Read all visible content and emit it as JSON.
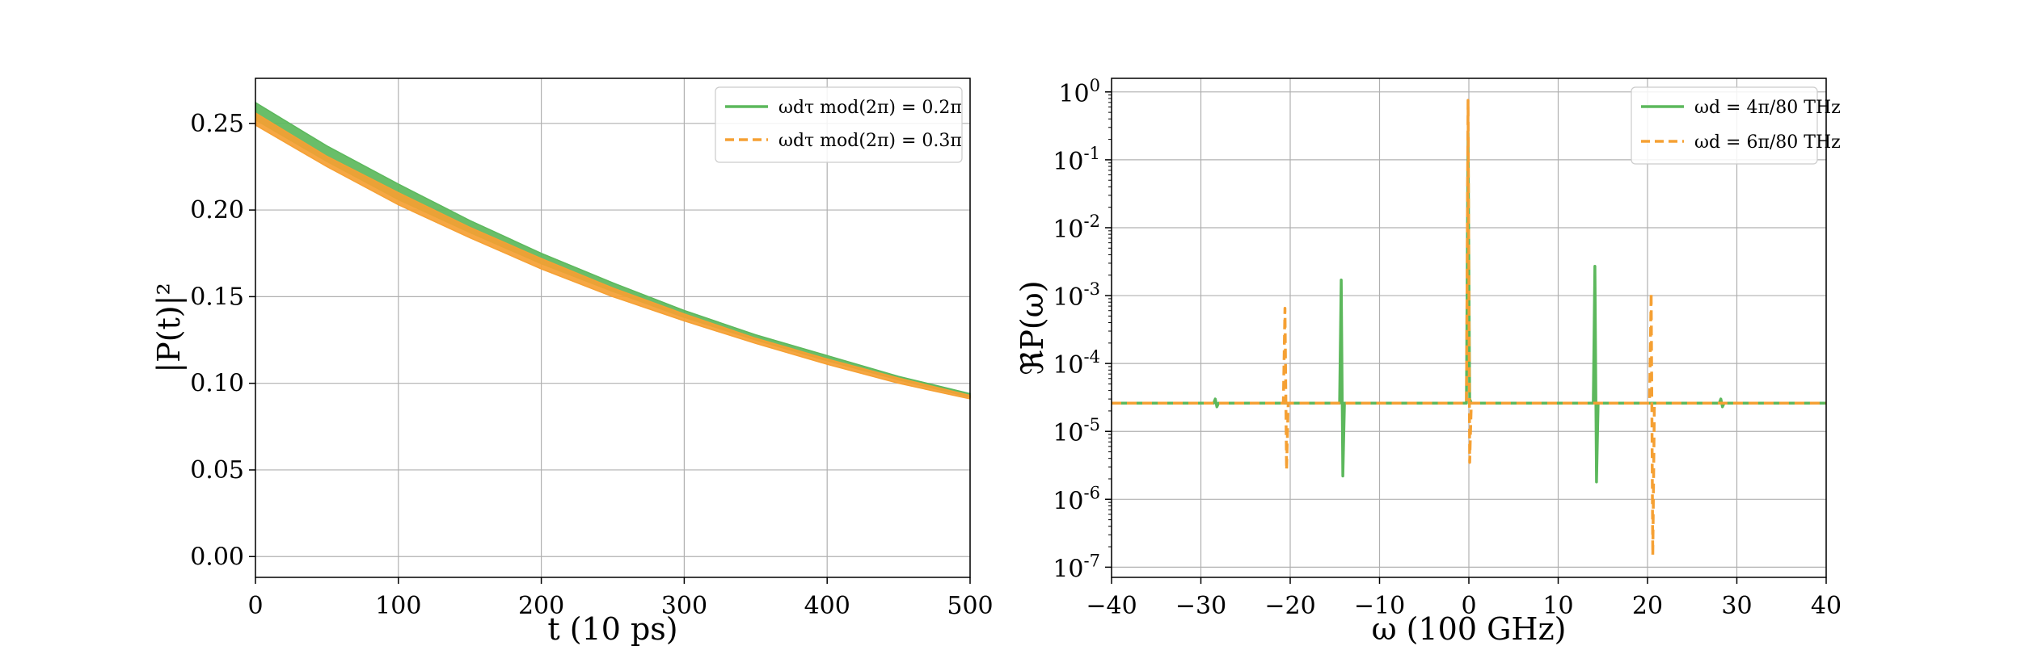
{
  "chart_data": [
    {
      "type": "line",
      "xlabel": "t (10 ps)",
      "ylabel": "|P(t)|²",
      "xlim": [
        0,
        500
      ],
      "ylim": [
        -0.012,
        0.276
      ],
      "x_ticks": [
        0,
        100,
        200,
        300,
        400,
        500
      ],
      "x_tick_labels": [
        "0",
        "100",
        "200",
        "300",
        "400",
        "500"
      ],
      "y_ticks": [
        0.0,
        0.05,
        0.1,
        0.15,
        0.2,
        0.25
      ],
      "y_tick_labels": [
        "0.00",
        "0.05",
        "0.10",
        "0.15",
        "0.20",
        "0.25"
      ],
      "grid": true,
      "legend_position": "top-right",
      "series": [
        {
          "name": "ωdτ mod(2π) = 0.2π",
          "color": "#5cb85c",
          "style": "solid",
          "x": [
            0,
            50,
            100,
            150,
            200,
            250,
            300,
            350,
            400,
            450,
            500
          ],
          "y_upper": [
            0.262,
            0.237,
            0.215,
            0.194,
            0.175,
            0.158,
            0.142,
            0.128,
            0.116,
            0.104,
            0.094
          ],
          "y_lower": [
            0.252,
            0.228,
            0.206,
            0.187,
            0.169,
            0.153,
            0.138,
            0.125,
            0.113,
            0.102,
            0.092
          ]
        },
        {
          "name": "ωdτ mod(2π) = 0.3π",
          "color": "#f5a033",
          "style": "dashed",
          "x": [
            0,
            50,
            100,
            150,
            200,
            250,
            300,
            350,
            400,
            450,
            500
          ],
          "y_upper": [
            0.256,
            0.231,
            0.21,
            0.19,
            0.172,
            0.155,
            0.14,
            0.126,
            0.114,
            0.103,
            0.093
          ],
          "y_lower": [
            0.249,
            0.225,
            0.203,
            0.184,
            0.166,
            0.15,
            0.136,
            0.123,
            0.111,
            0.1,
            0.091
          ]
        }
      ]
    },
    {
      "type": "line",
      "xlabel": "ω (100 GHz)",
      "ylabel": "ℜP(ω)",
      "xlim": [
        -40,
        40
      ],
      "ylim_log10": [
        -7.15,
        0.2
      ],
      "y_scale": "log",
      "x_ticks": [
        -40,
        -30,
        -20,
        -10,
        0,
        10,
        20,
        30,
        40
      ],
      "x_tick_labels": [
        "−40",
        "−30",
        "−20",
        "−10",
        "0",
        "10",
        "20",
        "30",
        "40"
      ],
      "y_ticks_log10": [
        0,
        -1,
        -2,
        -3,
        -4,
        -5,
        -6,
        -7
      ],
      "y_tick_exponents": [
        "0",
        "-1",
        "-2",
        "-3",
        "-4",
        "-5",
        "-6",
        "-7"
      ],
      "y_tick_base": "10",
      "grid": true,
      "legend_position": "top-right",
      "baseline": 2.6e-05,
      "series": [
        {
          "name": "ωd = 4π/80 THz",
          "color": "#5cb85c",
          "style": "solid",
          "resonances": [
            {
              "x": -28.3,
              "min": 2.3e-05,
              "max": 3e-05
            },
            {
              "x": -14.2,
              "min": 2.2e-06,
              "max": 0.0017
            },
            {
              "x": 0.0,
              "min": 3e-05,
              "max": 0.25
            },
            {
              "x": 14.2,
              "min": 1.8e-06,
              "max": 0.0027
            },
            {
              "x": 28.3,
              "min": 2.3e-05,
              "max": 3e-05
            }
          ]
        },
        {
          "name": "ωd = 6π/80 THz",
          "color": "#f5a033",
          "style": "dashed",
          "resonances": [
            {
              "x": -20.5,
              "min": 2.7e-06,
              "max": 0.00065
            },
            {
              "x": 0.0,
              "min": 3.5e-06,
              "max": 0.75
            },
            {
              "x": 20.5,
              "min": 1.5e-07,
              "max": 0.0011
            }
          ]
        }
      ]
    }
  ]
}
